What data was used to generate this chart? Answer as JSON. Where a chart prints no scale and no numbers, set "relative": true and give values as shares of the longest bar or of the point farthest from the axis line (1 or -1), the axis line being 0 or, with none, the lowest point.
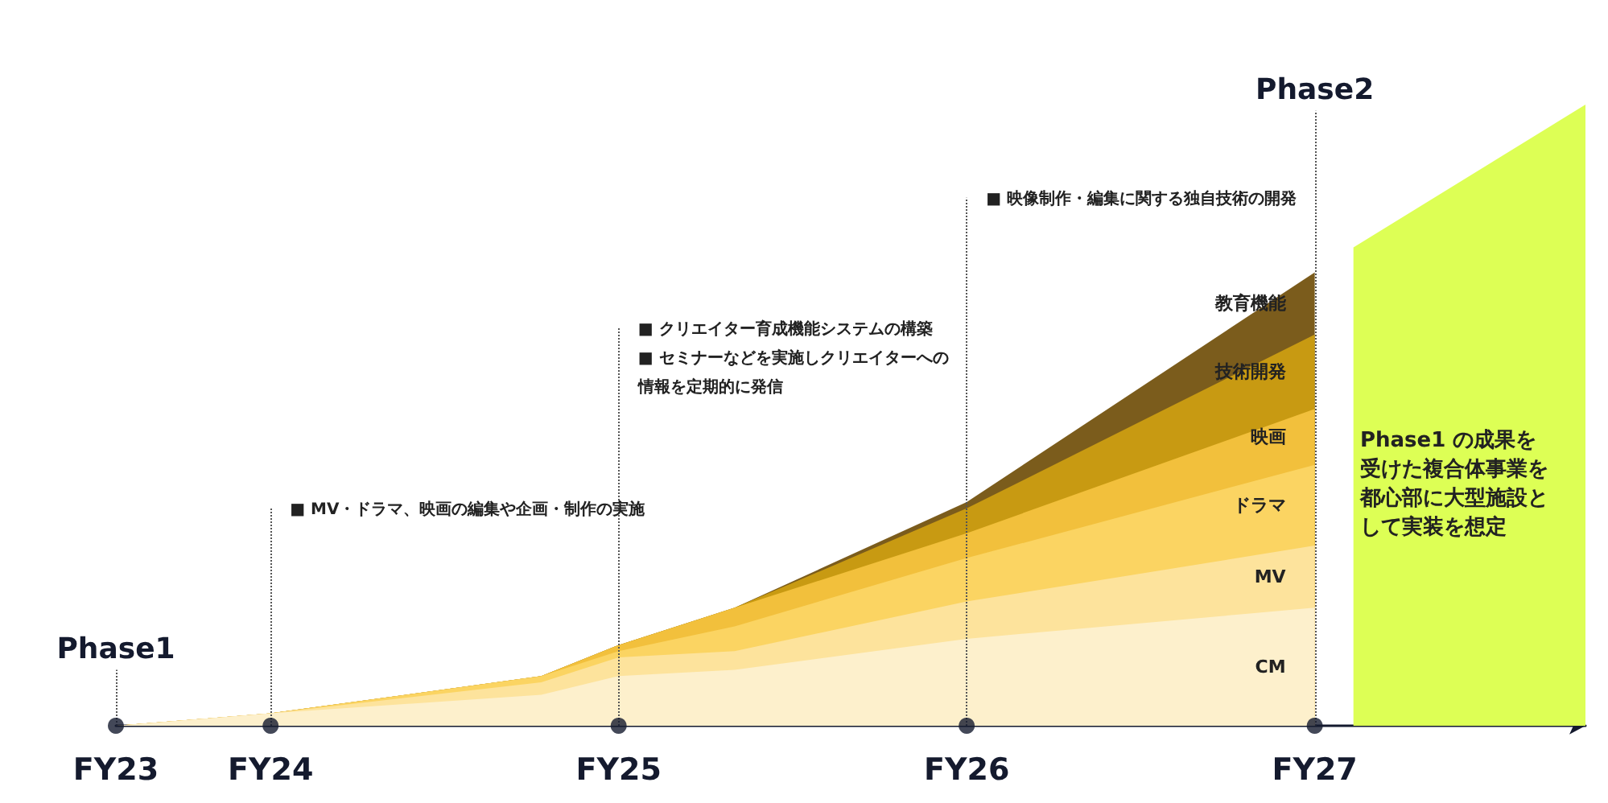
{
  "chart_data": {
    "type": "area",
    "relative": true,
    "stacked": true,
    "categories": [
      "FY23",
      null,
      null,
      null,
      "FY24",
      null,
      null,
      null,
      null,
      null,
      null,
      null,
      null,
      "FY25",
      null,
      null,
      null,
      null,
      null,
      null,
      null,
      null,
      "FY26",
      null,
      null,
      null,
      null,
      null,
      null,
      null,
      null,
      "FY27",
      null,
      null,
      null,
      null,
      null,
      null,
      null
    ],
    "series": [
      {
        "name": "CM",
        "color": "#fdf0cc",
        "values": [
          0,
          null,
          null,
          null,
          0.02,
          null,
          null,
          null,
          null,
          null,
          null,
          0.05,
          null,
          0.08,
          null,
          null,
          0.09,
          null,
          null,
          null,
          null,
          null,
          0.14,
          null,
          null,
          null,
          null,
          null,
          null,
          null,
          null,
          0.19,
          null,
          null,
          null,
          null,
          null,
          null,
          null
        ]
      },
      {
        "name": "MV",
        "color": "#fde39c",
        "values": [
          0,
          null,
          null,
          null,
          0,
          null,
          null,
          null,
          null,
          null,
          null,
          0.02,
          null,
          0.03,
          null,
          null,
          0.03,
          null,
          null,
          null,
          null,
          null,
          0.06,
          null,
          null,
          null,
          null,
          null,
          null,
          null,
          null,
          0.1,
          null,
          null,
          null,
          null,
          null,
          null,
          null
        ]
      },
      {
        "name": "ドラマ",
        "color": "#fbd462",
        "values": [
          0,
          null,
          null,
          null,
          0,
          null,
          null,
          null,
          null,
          null,
          null,
          0.01,
          null,
          0.01,
          null,
          null,
          0.04,
          null,
          null,
          null,
          null,
          null,
          0.07,
          null,
          null,
          null,
          null,
          null,
          null,
          null,
          null,
          0.13,
          null,
          null,
          null,
          null,
          null,
          null,
          null
        ]
      },
      {
        "name": "映画",
        "color": "#f2c03c",
        "values": [
          0,
          null,
          null,
          null,
          0,
          null,
          null,
          null,
          null,
          null,
          null,
          0,
          null,
          0.01,
          null,
          null,
          0.03,
          null,
          null,
          null,
          null,
          null,
          0.04,
          null,
          null,
          null,
          null,
          null,
          null,
          null,
          null,
          0.09,
          null,
          null,
          null,
          null,
          null,
          null,
          null
        ]
      },
      {
        "name": "技術開発",
        "color": "#c89a12",
        "values": [
          0,
          null,
          null,
          null,
          0,
          null,
          null,
          null,
          null,
          null,
          null,
          0,
          null,
          0,
          null,
          null,
          0,
          null,
          null,
          null,
          null,
          null,
          0.04,
          null,
          null,
          null,
          null,
          null,
          null,
          null,
          null,
          0.12,
          null,
          null,
          null,
          null,
          null,
          null,
          null
        ]
      },
      {
        "name": "教育機能",
        "color": "#7b5c1c",
        "values": [
          0,
          null,
          null,
          null,
          0,
          null,
          null,
          null,
          null,
          null,
          null,
          0,
          null,
          0,
          null,
          null,
          0,
          null,
          null,
          null,
          null,
          null,
          0.01,
          null,
          null,
          null,
          null,
          null,
          null,
          null,
          null,
          0.1,
          null,
          null,
          null,
          null,
          null,
          null,
          null
        ]
      },
      {
        "type": "scatter",
        "marker": "circle",
        "color": "#141a2e",
        "values": [
          0,
          null,
          null,
          null,
          0,
          null,
          null,
          null,
          null,
          null,
          null,
          null,
          null,
          0,
          null,
          null,
          null,
          null,
          null,
          null,
          null,
          null,
          0,
          null,
          null,
          null,
          null,
          null,
          null,
          null,
          null,
          0,
          null,
          null,
          null,
          null,
          null,
          null,
          null
        ]
      },
      {
        "color": "#ddff55",
        "values": [
          null,
          null,
          null,
          null,
          null,
          null,
          null,
          null,
          null,
          null,
          null,
          null,
          null,
          null,
          null,
          null,
          null,
          null,
          null,
          null,
          null,
          null,
          null,
          null,
          null,
          null,
          null,
          null,
          null,
          null,
          null,
          null,
          0.77,
          null,
          null,
          null,
          null,
          null,
          1
        ]
      }
    ],
    "ref_lines": [
      {
        "axis": "x",
        "value": "FY23",
        "label": "Phase1",
        "line_style": "dotted",
        "color": "#555555"
      },
      {
        "axis": "x",
        "value": "FY24",
        "label": "■ MV・ドラマ、映画の編集や企画・制作の実施",
        "line_style": "dotted",
        "color": "#555555"
      },
      {
        "axis": "x",
        "value": "FY25",
        "label": "■ クリエイター育成機能システムの構築\n■ セミナーなどを実施しクリエイターへの情報を定期的に発信",
        "line_style": "dotted",
        "color": "#555555"
      },
      {
        "axis": "x",
        "value": "FY26",
        "label": "■ 映像制作・編集に関する独自技術の開発",
        "line_style": "dotted",
        "color": "#555555"
      },
      {
        "axis": "x",
        "value": "FY27",
        "label": "Phase2",
        "line_style": "dotted",
        "color": "#555555"
      }
    ],
    "annotations": [
      "Phase1 の成果を受けた複合体事業を都心部に大型施設として実装を想定"
    ],
    "grid": false,
    "legend": false
  }
}
